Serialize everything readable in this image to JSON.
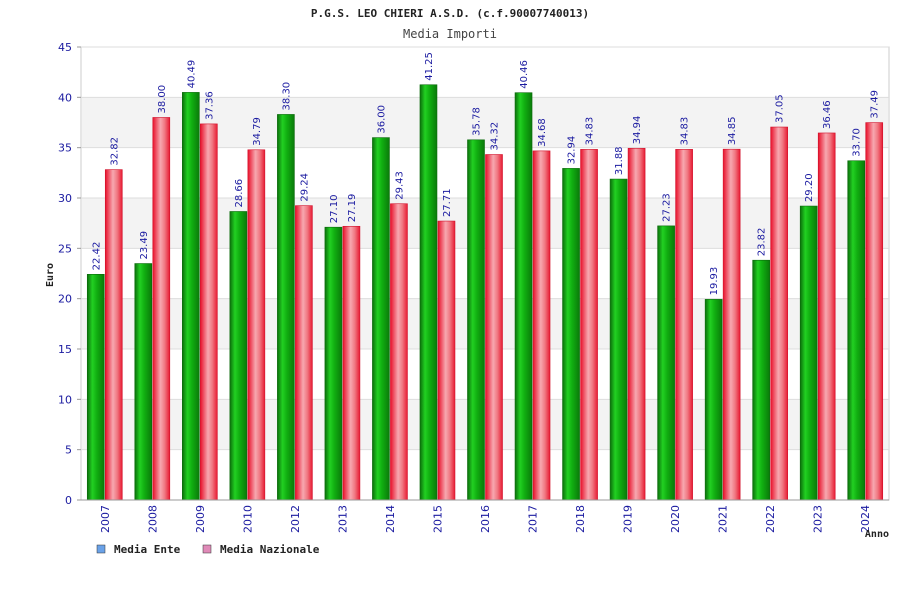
{
  "chart_data": {
    "type": "bar",
    "title": "P.G.S. LEO CHIERI A.S.D. (c.f.90007740013)",
    "subtitle": "Media Importi",
    "ylabel": "Euro",
    "xlabel": "Anno",
    "ylim": [
      0,
      45
    ],
    "yticks": [
      0,
      5,
      10,
      15,
      20,
      25,
      30,
      35,
      40,
      45
    ],
    "grid": true,
    "legend_position": "bottom-left",
    "categories": [
      "2007",
      "2008",
      "2009",
      "2010",
      "2012",
      "2013",
      "2014",
      "2015",
      "2016",
      "2017",
      "2018",
      "2019",
      "2020",
      "2021",
      "2022",
      "2023",
      "2024"
    ],
    "series": [
      {
        "name": "Media Ente",
        "color": "#11a911",
        "legend_color": "#6aa2e8",
        "values": [
          22.42,
          23.49,
          40.49,
          28.66,
          38.3,
          27.1,
          36.0,
          41.25,
          35.78,
          40.46,
          32.94,
          31.88,
          27.23,
          19.93,
          23.82,
          29.2,
          33.7
        ],
        "labels": [
          "22.42",
          "23.49",
          "40.49",
          "28.66",
          "38.30",
          "27.10",
          "36.00",
          "41.25",
          "35.78",
          "40.46",
          "32.94",
          "31.88",
          "27.23",
          "19.93",
          "23.82",
          "29.20",
          "33.70"
        ]
      },
      {
        "name": "Media Nazionale",
        "color": "#e8333f",
        "legend_color": "#e08ab8",
        "values": [
          32.82,
          38.0,
          37.36,
          34.79,
          29.24,
          27.19,
          29.43,
          27.71,
          34.32,
          34.68,
          34.83,
          34.94,
          34.83,
          34.85,
          37.05,
          36.46,
          37.49
        ],
        "labels": [
          "32.82",
          "38.00",
          "37.36",
          "34.79",
          "29.24",
          "27.19",
          "29.43",
          "27.71",
          "34.32",
          "34.68",
          "34.83",
          "34.94",
          "34.83",
          "34.85",
          "37.05",
          "36.46",
          "37.49"
        ]
      }
    ]
  }
}
